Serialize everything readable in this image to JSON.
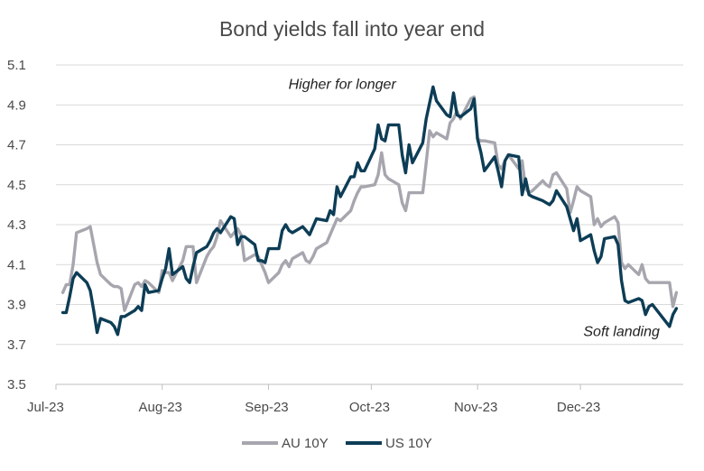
{
  "chart_data": {
    "type": "line",
    "title": "Bond yields fall into year end",
    "xlabel": "",
    "ylabel": "",
    "ylim": [
      3.5,
      5.1
    ],
    "yticks": [
      "3.5",
      "3.7",
      "3.9",
      "4.1",
      "4.3",
      "4.5",
      "4.7",
      "4.9",
      "5.1"
    ],
    "xticks": [
      "Jul-23",
      "Aug-23",
      "Sep-23",
      "Oct-23",
      "Nov-23",
      "Dec-23"
    ],
    "grid": "horizontal",
    "legend_position": "bottom",
    "colors": {
      "AU 10Y": "#a7a6ae",
      "US 10Y": "#0d3d56"
    },
    "annotations": [
      {
        "text": "Higher for longer",
        "date": "2023-10-14",
        "y": 4.99
      },
      {
        "text": "Soft landing",
        "date": "2023-12-13",
        "y": 3.75
      }
    ],
    "series": [
      {
        "name": "AU 10Y",
        "points": [
          [
            "2023-07-03",
            3.96
          ],
          [
            "2023-07-04",
            4.0
          ],
          [
            "2023-07-05",
            4.0
          ],
          [
            "2023-07-06",
            4.1
          ],
          [
            "2023-07-07",
            4.26
          ],
          [
            "2023-07-10",
            4.28
          ],
          [
            "2023-07-11",
            4.29
          ],
          [
            "2023-07-12",
            4.2
          ],
          [
            "2023-07-13",
            4.11
          ],
          [
            "2023-07-14",
            4.05
          ],
          [
            "2023-07-17",
            4.0
          ],
          [
            "2023-07-18",
            3.99
          ],
          [
            "2023-07-19",
            3.99
          ],
          [
            "2023-07-20",
            3.98
          ],
          [
            "2023-07-21",
            3.87
          ],
          [
            "2023-07-24",
            4.0
          ],
          [
            "2023-07-25",
            4.01
          ],
          [
            "2023-07-26",
            3.99
          ],
          [
            "2023-07-27",
            4.02
          ],
          [
            "2023-07-28",
            4.01
          ],
          [
            "2023-07-31",
            3.96
          ],
          [
            "2023-08-01",
            4.07
          ],
          [
            "2023-08-02",
            4.06
          ],
          [
            "2023-08-03",
            4.06
          ],
          [
            "2023-08-04",
            4.02
          ],
          [
            "2023-08-07",
            4.12
          ],
          [
            "2023-08-08",
            4.19
          ],
          [
            "2023-08-09",
            4.19
          ],
          [
            "2023-08-10",
            4.19
          ],
          [
            "2023-08-11",
            4.01
          ],
          [
            "2023-08-14",
            4.14
          ],
          [
            "2023-08-15",
            4.17
          ],
          [
            "2023-08-16",
            4.19
          ],
          [
            "2023-08-17",
            4.24
          ],
          [
            "2023-08-18",
            4.32
          ],
          [
            "2023-08-21",
            4.24
          ],
          [
            "2023-08-22",
            4.26
          ],
          [
            "2023-08-23",
            4.28
          ],
          [
            "2023-08-24",
            4.25
          ],
          [
            "2023-08-25",
            4.12
          ],
          [
            "2023-08-28",
            4.15
          ],
          [
            "2023-08-29",
            4.14
          ],
          [
            "2023-08-30",
            4.1
          ],
          [
            "2023-08-31",
            4.06
          ],
          [
            "2023-09-01",
            4.01
          ],
          [
            "2023-09-04",
            4.06
          ],
          [
            "2023-09-05",
            4.1
          ],
          [
            "2023-09-06",
            4.12
          ],
          [
            "2023-09-07",
            4.09
          ],
          [
            "2023-09-08",
            4.13
          ],
          [
            "2023-09-11",
            4.16
          ],
          [
            "2023-09-12",
            4.12
          ],
          [
            "2023-09-13",
            4.11
          ],
          [
            "2023-09-14",
            4.14
          ],
          [
            "2023-09-15",
            4.18
          ],
          [
            "2023-09-18",
            4.21
          ],
          [
            "2023-09-19",
            4.25
          ],
          [
            "2023-09-20",
            4.29
          ],
          [
            "2023-09-21",
            4.33
          ],
          [
            "2023-09-22",
            4.32
          ],
          [
            "2023-09-25",
            4.37
          ],
          [
            "2023-09-26",
            4.42
          ],
          [
            "2023-09-27",
            4.46
          ],
          [
            "2023-09-28",
            4.49
          ],
          [
            "2023-09-29",
            4.49
          ],
          [
            "2023-10-02",
            4.5
          ],
          [
            "2023-10-03",
            4.55
          ],
          [
            "2023-10-04",
            4.66
          ],
          [
            "2023-10-05",
            4.55
          ],
          [
            "2023-10-06",
            4.53
          ],
          [
            "2023-10-09",
            4.5
          ],
          [
            "2023-10-10",
            4.41
          ],
          [
            "2023-10-11",
            4.37
          ],
          [
            "2023-10-12",
            4.46
          ],
          [
            "2023-10-13",
            4.46
          ],
          [
            "2023-10-16",
            4.46
          ],
          [
            "2023-10-17",
            4.61
          ],
          [
            "2023-10-18",
            4.77
          ],
          [
            "2023-10-19",
            4.74
          ],
          [
            "2023-10-20",
            4.76
          ],
          [
            "2023-10-23",
            4.73
          ],
          [
            "2023-10-24",
            4.81
          ],
          [
            "2023-10-25",
            4.83
          ],
          [
            "2023-10-26",
            4.87
          ],
          [
            "2023-10-27",
            4.83
          ],
          [
            "2023-10-30",
            4.93
          ],
          [
            "2023-10-31",
            4.94
          ],
          [
            "2023-11-01",
            4.73
          ],
          [
            "2023-11-02",
            4.72
          ],
          [
            "2023-11-03",
            4.72
          ],
          [
            "2023-11-06",
            4.71
          ],
          [
            "2023-11-07",
            4.6
          ],
          [
            "2023-11-08",
            4.58
          ],
          [
            "2023-11-09",
            4.62
          ],
          [
            "2023-11-10",
            4.65
          ],
          [
            "2023-11-13",
            4.58
          ],
          [
            "2023-11-14",
            4.62
          ],
          [
            "2023-11-15",
            4.48
          ],
          [
            "2023-11-16",
            4.46
          ],
          [
            "2023-11-17",
            4.47
          ],
          [
            "2023-11-20",
            4.52
          ],
          [
            "2023-11-21",
            4.5
          ],
          [
            "2023-11-22",
            4.49
          ],
          [
            "2023-11-23",
            4.55
          ],
          [
            "2023-11-24",
            4.56
          ],
          [
            "2023-11-27",
            4.48
          ],
          [
            "2023-11-28",
            4.36
          ],
          [
            "2023-11-29",
            4.42
          ],
          [
            "2023-11-30",
            4.49
          ],
          [
            "2023-12-01",
            4.47
          ],
          [
            "2023-12-04",
            4.44
          ],
          [
            "2023-12-05",
            4.3
          ],
          [
            "2023-12-06",
            4.33
          ],
          [
            "2023-12-07",
            4.29
          ],
          [
            "2023-12-08",
            4.31
          ],
          [
            "2023-12-11",
            4.34
          ],
          [
            "2023-12-12",
            4.31
          ],
          [
            "2023-12-13",
            4.11
          ],
          [
            "2023-12-14",
            4.08
          ],
          [
            "2023-12-15",
            4.1
          ],
          [
            "2023-12-18",
            4.05
          ],
          [
            "2023-12-19",
            4.1
          ],
          [
            "2023-12-20",
            4.03
          ],
          [
            "2023-12-21",
            4.01
          ],
          [
            "2023-12-22",
            4.01
          ],
          [
            "2023-12-27",
            4.01
          ],
          [
            "2023-12-28",
            3.89
          ],
          [
            "2023-12-29",
            3.96
          ]
        ]
      },
      {
        "name": "US 10Y",
        "points": [
          [
            "2023-07-03",
            3.86
          ],
          [
            "2023-07-04",
            3.86
          ],
          [
            "2023-07-05",
            3.94
          ],
          [
            "2023-07-06",
            4.03
          ],
          [
            "2023-07-07",
            4.06
          ],
          [
            "2023-07-10",
            4.01
          ],
          [
            "2023-07-11",
            3.97
          ],
          [
            "2023-07-12",
            3.87
          ],
          [
            "2023-07-13",
            3.76
          ],
          [
            "2023-07-14",
            3.83
          ],
          [
            "2023-07-17",
            3.81
          ],
          [
            "2023-07-18",
            3.79
          ],
          [
            "2023-07-19",
            3.75
          ],
          [
            "2023-07-20",
            3.84
          ],
          [
            "2023-07-21",
            3.84
          ],
          [
            "2023-07-24",
            3.87
          ],
          [
            "2023-07-25",
            3.89
          ],
          [
            "2023-07-26",
            3.87
          ],
          [
            "2023-07-27",
            4.0
          ],
          [
            "2023-07-28",
            3.96
          ],
          [
            "2023-07-31",
            3.97
          ],
          [
            "2023-08-01",
            4.03
          ],
          [
            "2023-08-02",
            4.08
          ],
          [
            "2023-08-03",
            4.18
          ],
          [
            "2023-08-04",
            4.05
          ],
          [
            "2023-08-07",
            4.09
          ],
          [
            "2023-08-08",
            4.03
          ],
          [
            "2023-08-09",
            4.01
          ],
          [
            "2023-08-10",
            4.09
          ],
          [
            "2023-08-11",
            4.16
          ],
          [
            "2023-08-14",
            4.19
          ],
          [
            "2023-08-15",
            4.22
          ],
          [
            "2023-08-16",
            4.26
          ],
          [
            "2023-08-17",
            4.28
          ],
          [
            "2023-08-18",
            4.26
          ],
          [
            "2023-08-21",
            4.34
          ],
          [
            "2023-08-22",
            4.33
          ],
          [
            "2023-08-23",
            4.2
          ],
          [
            "2023-08-24",
            4.24
          ],
          [
            "2023-08-25",
            4.24
          ],
          [
            "2023-08-28",
            4.2
          ],
          [
            "2023-08-29",
            4.12
          ],
          [
            "2023-08-30",
            4.12
          ],
          [
            "2023-08-31",
            4.11
          ],
          [
            "2023-09-01",
            4.18
          ],
          [
            "2023-09-04",
            4.18
          ],
          [
            "2023-09-05",
            4.27
          ],
          [
            "2023-09-06",
            4.3
          ],
          [
            "2023-09-07",
            4.27
          ],
          [
            "2023-09-08",
            4.26
          ],
          [
            "2023-09-11",
            4.29
          ],
          [
            "2023-09-12",
            4.27
          ],
          [
            "2023-09-13",
            4.25
          ],
          [
            "2023-09-14",
            4.29
          ],
          [
            "2023-09-15",
            4.33
          ],
          [
            "2023-09-18",
            4.32
          ],
          [
            "2023-09-19",
            4.37
          ],
          [
            "2023-09-20",
            4.35
          ],
          [
            "2023-09-21",
            4.49
          ],
          [
            "2023-09-22",
            4.44
          ],
          [
            "2023-09-25",
            4.54
          ],
          [
            "2023-09-26",
            4.54
          ],
          [
            "2023-09-27",
            4.61
          ],
          [
            "2023-09-28",
            4.57
          ],
          [
            "2023-09-29",
            4.57
          ],
          [
            "2023-10-02",
            4.68
          ],
          [
            "2023-10-03",
            4.8
          ],
          [
            "2023-10-04",
            4.73
          ],
          [
            "2023-10-05",
            4.72
          ],
          [
            "2023-10-06",
            4.8
          ],
          [
            "2023-10-09",
            4.8
          ],
          [
            "2023-10-10",
            4.65
          ],
          [
            "2023-10-11",
            4.56
          ],
          [
            "2023-10-12",
            4.7
          ],
          [
            "2023-10-13",
            4.61
          ],
          [
            "2023-10-16",
            4.71
          ],
          [
            "2023-10-17",
            4.83
          ],
          [
            "2023-10-18",
            4.91
          ],
          [
            "2023-10-19",
            4.99
          ],
          [
            "2023-10-20",
            4.92
          ],
          [
            "2023-10-23",
            4.85
          ],
          [
            "2023-10-24",
            4.84
          ],
          [
            "2023-10-25",
            4.96
          ],
          [
            "2023-10-26",
            4.85
          ],
          [
            "2023-10-27",
            4.84
          ],
          [
            "2023-10-30",
            4.88
          ],
          [
            "2023-10-31",
            4.93
          ],
          [
            "2023-11-01",
            4.73
          ],
          [
            "2023-11-02",
            4.66
          ],
          [
            "2023-11-03",
            4.57
          ],
          [
            "2023-11-06",
            4.64
          ],
          [
            "2023-11-07",
            4.57
          ],
          [
            "2023-11-08",
            4.49
          ],
          [
            "2023-11-09",
            4.62
          ],
          [
            "2023-11-10",
            4.65
          ],
          [
            "2023-11-13",
            4.64
          ],
          [
            "2023-11-14",
            4.45
          ],
          [
            "2023-11-15",
            4.53
          ],
          [
            "2023-11-16",
            4.45
          ],
          [
            "2023-11-17",
            4.44
          ],
          [
            "2023-11-20",
            4.42
          ],
          [
            "2023-11-21",
            4.41
          ],
          [
            "2023-11-22",
            4.4
          ],
          [
            "2023-11-23",
            4.42
          ],
          [
            "2023-11-24",
            4.47
          ],
          [
            "2023-11-27",
            4.39
          ],
          [
            "2023-11-28",
            4.33
          ],
          [
            "2023-11-29",
            4.27
          ],
          [
            "2023-11-30",
            4.33
          ],
          [
            "2023-12-01",
            4.22
          ],
          [
            "2023-12-04",
            4.25
          ],
          [
            "2023-12-05",
            4.17
          ],
          [
            "2023-12-06",
            4.11
          ],
          [
            "2023-12-07",
            4.14
          ],
          [
            "2023-12-08",
            4.23
          ],
          [
            "2023-12-11",
            4.24
          ],
          [
            "2023-12-12",
            4.2
          ],
          [
            "2023-12-13",
            4.02
          ],
          [
            "2023-12-14",
            3.92
          ],
          [
            "2023-12-15",
            3.91
          ],
          [
            "2023-12-18",
            3.93
          ],
          [
            "2023-12-19",
            3.92
          ],
          [
            "2023-12-20",
            3.85
          ],
          [
            "2023-12-21",
            3.89
          ],
          [
            "2023-12-22",
            3.9
          ],
          [
            "2023-12-27",
            3.79
          ],
          [
            "2023-12-28",
            3.85
          ],
          [
            "2023-12-29",
            3.88
          ]
        ]
      }
    ]
  }
}
